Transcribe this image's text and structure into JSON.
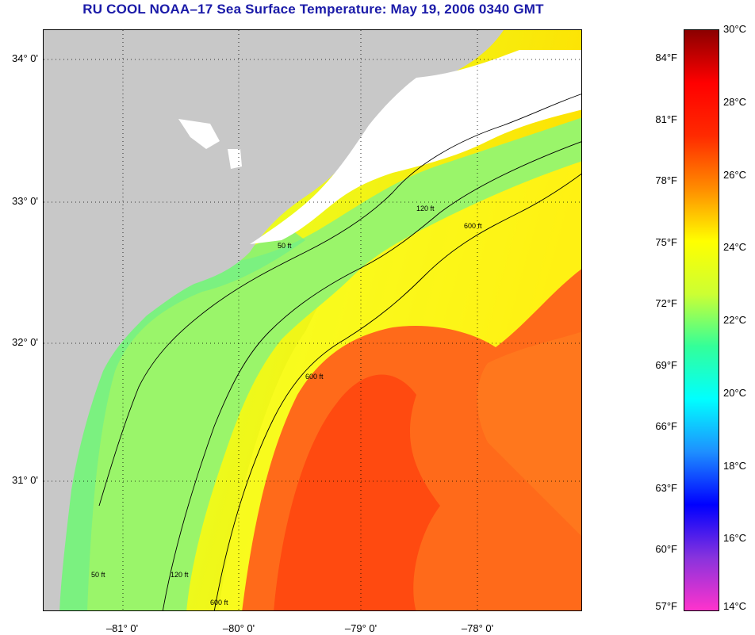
{
  "title": "RU COOL  NOAA–17  Sea Surface Temperature:  May 19, 2006 0340 GMT",
  "latitude_labels": [
    "34° 0'",
    "33° 0'",
    "32° 0'",
    "31° 0'"
  ],
  "longitude_labels": [
    "–81° 0'",
    "–80° 0'",
    "–79° 0'",
    "–78° 0'"
  ],
  "contour_labels": [
    "50 ft",
    "120 ft",
    "600 ft"
  ],
  "colorbar": {
    "fahrenheit_labels": [
      "84°F",
      "81°F",
      "78°F",
      "75°F",
      "72°F",
      "69°F",
      "66°F",
      "63°F",
      "60°F",
      "57°F"
    ],
    "celsius_labels": [
      "30°C",
      "28°C",
      "26°C",
      "24°C",
      "22°C",
      "20°C",
      "18°C",
      "16°C",
      "14°C"
    ],
    "color_stops": [
      "#ff33cc",
      "#8833dd",
      "#0000ff",
      "#1e8fff",
      "#00ffff",
      "#33ff99",
      "#ccff33",
      "#ffff00",
      "#ff8c00",
      "#ff2a00",
      "#ff0000",
      "#8b0000"
    ]
  },
  "colors": {
    "land": "#c8c8c8",
    "cloud": "#ffffff",
    "shelf_water": "#9af56a",
    "mid_water": "#ffff22",
    "gulf_stream": "#ff6a1a",
    "gulf_stream_core": "#ff4a10",
    "title": "#1a1aa8"
  }
}
